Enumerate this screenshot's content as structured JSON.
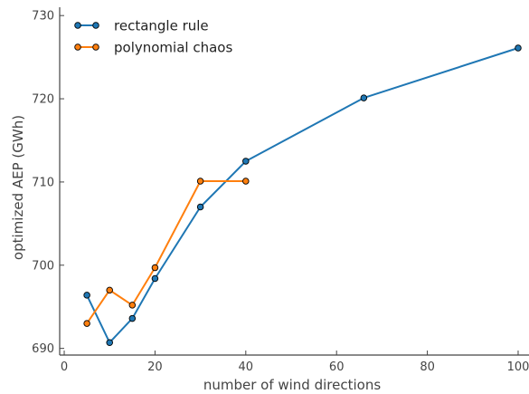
{
  "chart_data": {
    "type": "line",
    "title": "",
    "xlabel": "number of wind directions",
    "ylabel": "optimized AEP (GWh)",
    "xlim": [
      -1,
      101
    ],
    "ylim": [
      689.2,
      731
    ],
    "xticks": [
      0,
      20,
      40,
      60,
      80,
      100
    ],
    "yticks": [
      690,
      700,
      710,
      720,
      730
    ],
    "grid": false,
    "legend_position": "top-left",
    "series": [
      {
        "name": "rectangle rule",
        "color": "#1f77b4",
        "x": [
          5,
          10,
          15,
          20,
          30,
          40,
          66,
          100
        ],
        "y": [
          696.4,
          690.7,
          693.6,
          698.4,
          707.0,
          712.5,
          720.1,
          726.1
        ]
      },
      {
        "name": "polynomial chaos",
        "color": "#ff7f0e",
        "x": [
          5,
          10,
          15,
          20,
          30,
          40
        ],
        "y": [
          693.0,
          697.0,
          695.2,
          699.7,
          710.1,
          710.1
        ]
      }
    ]
  }
}
